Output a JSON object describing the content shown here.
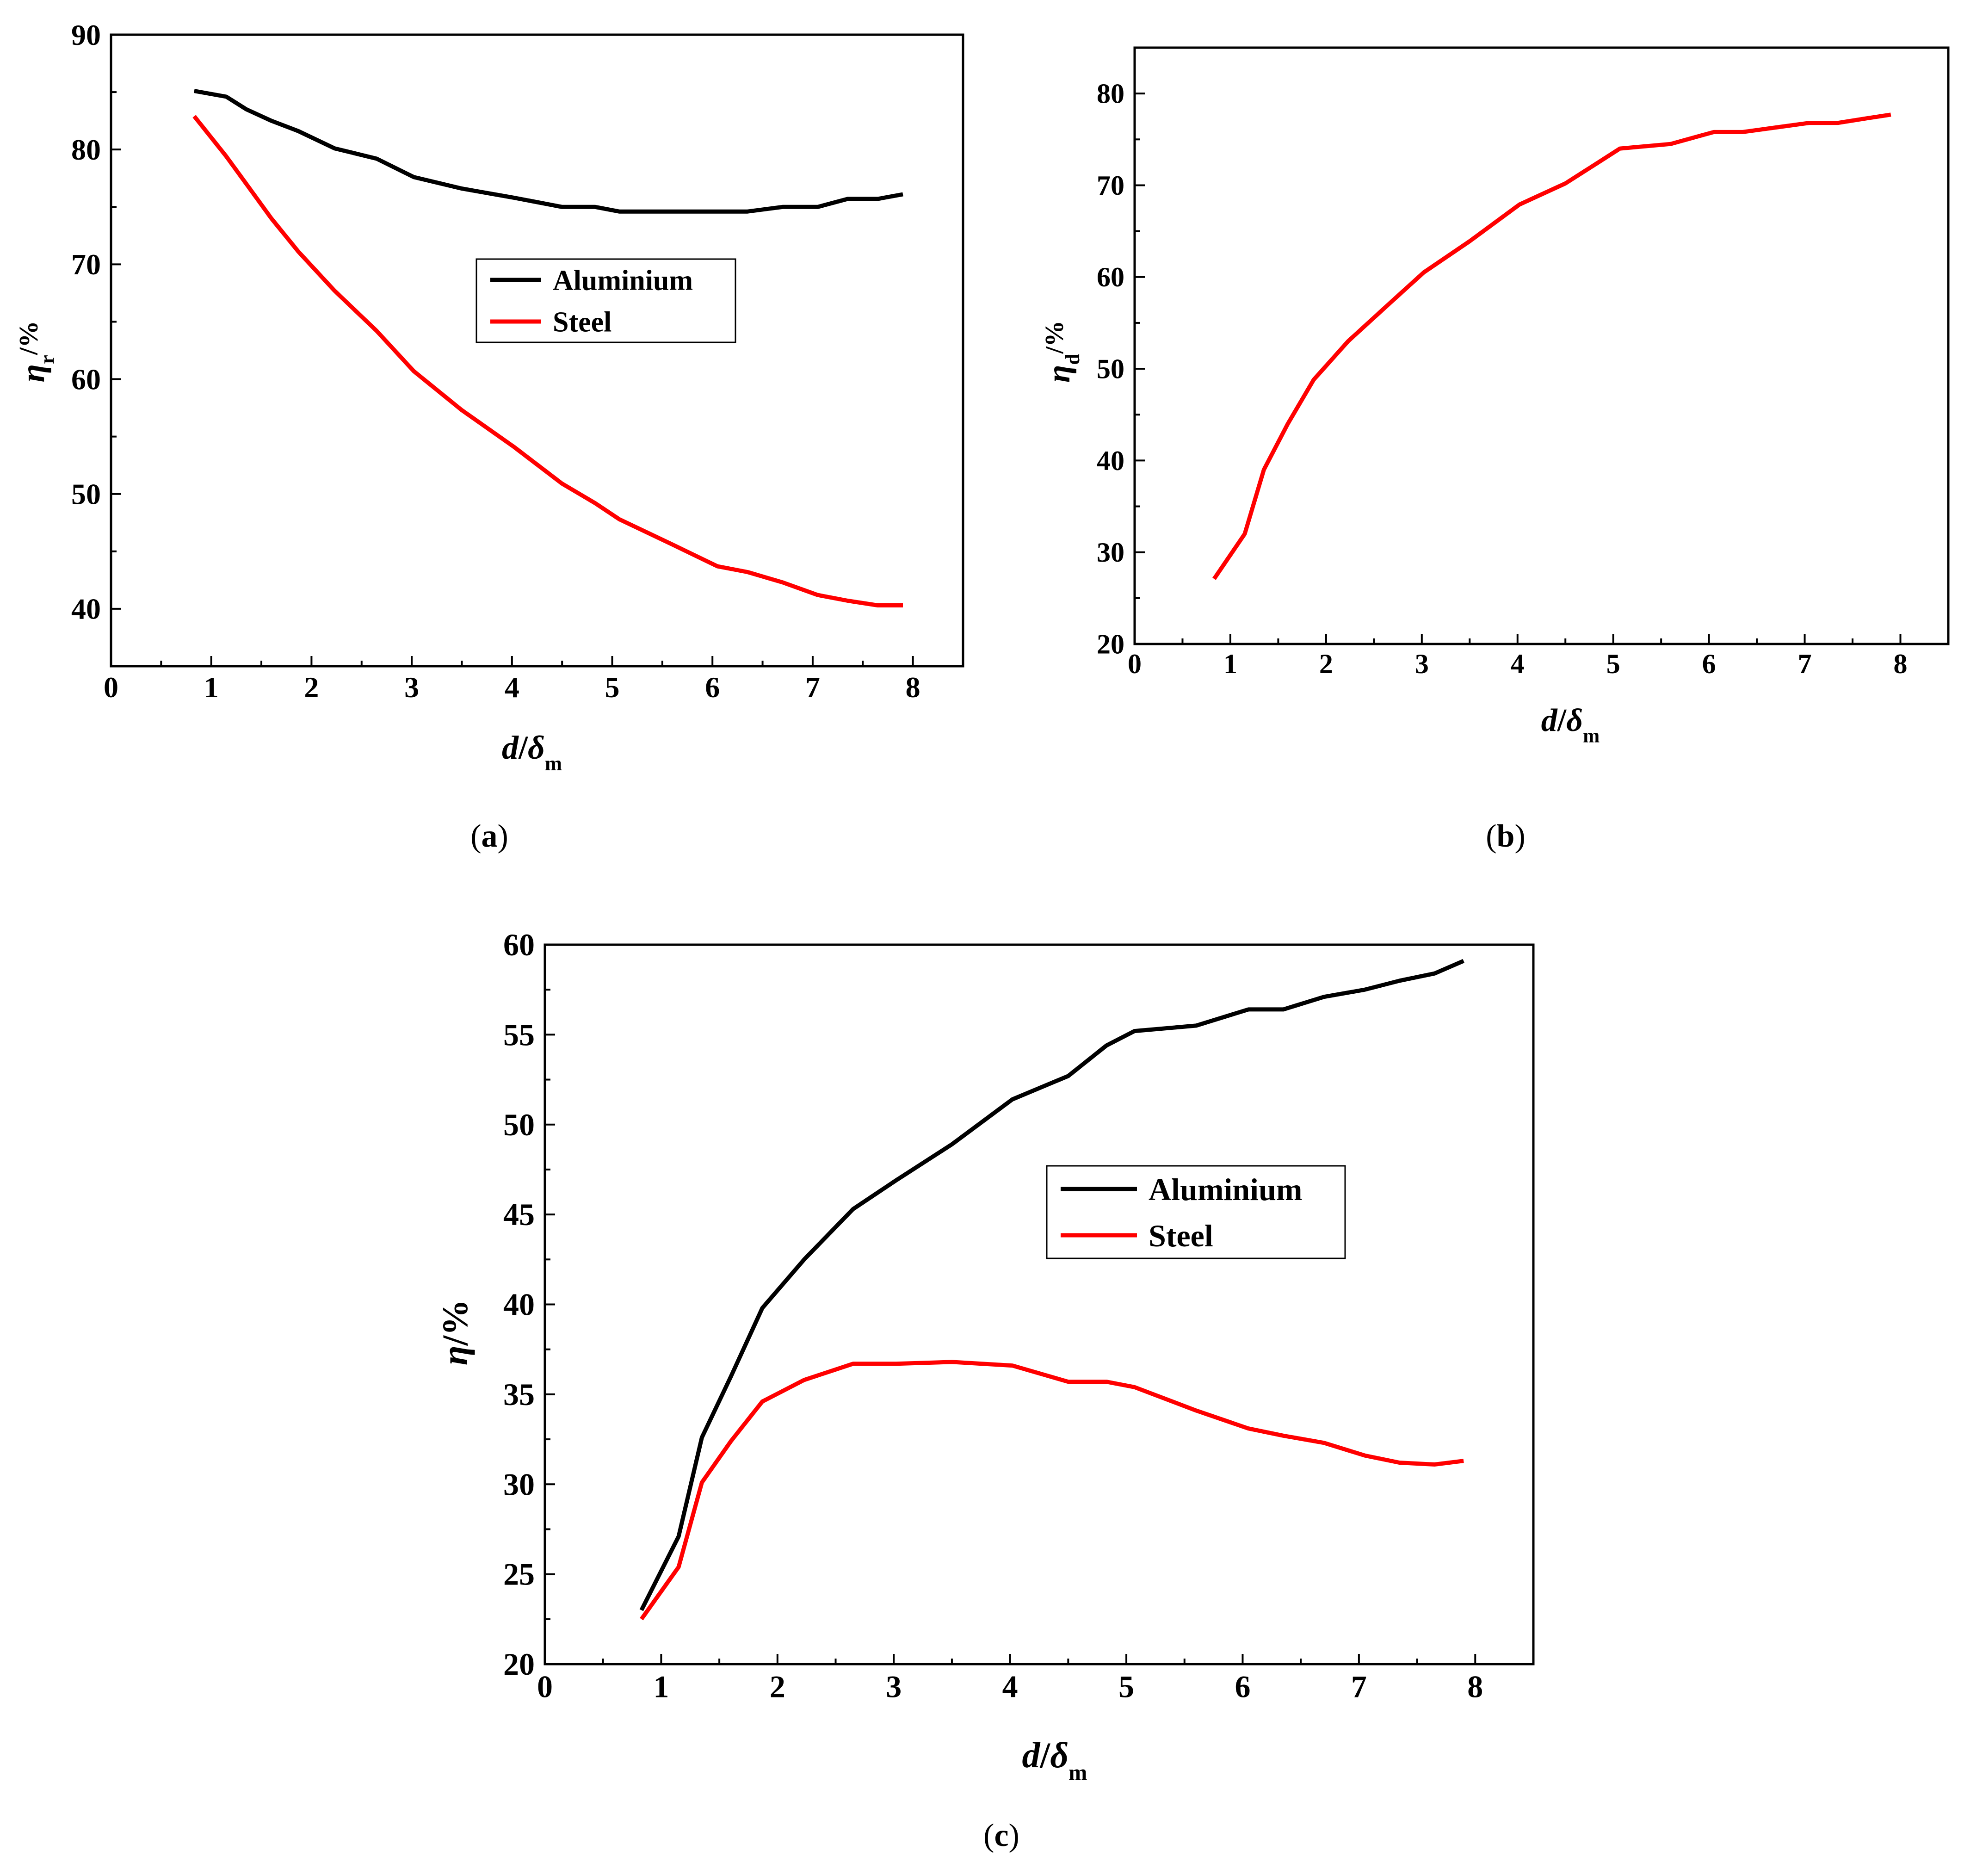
{
  "chart_data": [
    {
      "id": "a",
      "type": "line",
      "caption_letter": "a",
      "title": "",
      "xlabel": {
        "main": "d",
        "sep": "/",
        "sym": "δ",
        "sub": "m"
      },
      "ylabel": {
        "main": "η",
        "sub": "r",
        "suffix": "/%"
      },
      "xlim": [
        0,
        8.5
      ],
      "ylim": [
        35,
        90
      ],
      "xticks": [
        "0",
        "1",
        "2",
        "3",
        "4",
        "5",
        "6",
        "7",
        "8"
      ],
      "yticks": [
        "40",
        "50",
        "60",
        "70",
        "80",
        "90"
      ],
      "legend_position": "center",
      "series": [
        {
          "name": "Aluminium",
          "color": "#000000",
          "x": [
            0.83,
            1.15,
            1.35,
            1.6,
            1.87,
            2.23,
            2.65,
            3.02,
            3.5,
            4.02,
            4.5,
            4.83,
            5.07,
            5.6,
            6.05,
            6.35,
            6.7,
            7.05,
            7.35,
            7.65,
            7.9
          ],
          "y": [
            85.1,
            84.6,
            83.5,
            82.5,
            81.6,
            80.1,
            79.2,
            77.6,
            76.6,
            75.8,
            75.0,
            75.0,
            74.6,
            74.6,
            74.6,
            74.6,
            75.0,
            75.0,
            75.7,
            75.7,
            76.1
          ]
        },
        {
          "name": "Steel",
          "color": "#ff0000",
          "x": [
            0.83,
            1.15,
            1.35,
            1.6,
            1.87,
            2.23,
            2.65,
            3.02,
            3.5,
            4.02,
            4.5,
            4.83,
            5.07,
            5.6,
            6.05,
            6.35,
            6.7,
            7.05,
            7.35,
            7.65,
            7.9
          ],
          "y": [
            82.9,
            79.4,
            77.0,
            74.0,
            71.1,
            67.7,
            64.2,
            60.7,
            57.3,
            54.1,
            50.9,
            49.2,
            47.8,
            45.6,
            43.7,
            43.2,
            42.3,
            41.2,
            40.7,
            40.3,
            40.3
          ]
        }
      ]
    },
    {
      "id": "b",
      "type": "line",
      "caption_letter": "b",
      "title": "",
      "xlabel": {
        "main": "d",
        "sep": "/",
        "sym": "δ",
        "sub": "m"
      },
      "ylabel": {
        "main": "η",
        "sub": "d",
        "suffix": "/%"
      },
      "xlim": [
        0,
        8.5
      ],
      "ylim": [
        20,
        85
      ],
      "xticks": [
        "0",
        "1",
        "2",
        "3",
        "4",
        "5",
        "6",
        "7",
        "8"
      ],
      "yticks": [
        "20",
        "30",
        "40",
        "50",
        "60",
        "70",
        "80"
      ],
      "series": [
        {
          "name": "",
          "color": "#ff0000",
          "x": [
            0.83,
            1.15,
            1.35,
            1.6,
            1.87,
            2.23,
            2.65,
            3.02,
            3.5,
            4.02,
            4.5,
            4.83,
            5.07,
            5.6,
            6.05,
            6.35,
            6.7,
            7.05,
            7.35,
            7.65,
            7.9
          ],
          "y": [
            27.1,
            32.0,
            39.0,
            44.0,
            48.8,
            53.0,
            57.0,
            60.5,
            63.9,
            67.9,
            70.2,
            72.4,
            74.0,
            74.5,
            75.8,
            75.8,
            76.3,
            76.8,
            76.8,
            77.3,
            77.7
          ]
        }
      ]
    },
    {
      "id": "c",
      "type": "line",
      "caption_letter": "c",
      "title": "",
      "xlabel": {
        "main": "d",
        "sep": "/",
        "sym": "δ",
        "sub": "m"
      },
      "ylabel": {
        "main": "η",
        "sub": "",
        "suffix": "/%"
      },
      "xlim": [
        0,
        8.5
      ],
      "ylim": [
        20,
        60
      ],
      "xticks": [
        "0",
        "1",
        "2",
        "3",
        "4",
        "5",
        "6",
        "7",
        "8"
      ],
      "yticks": [
        "20",
        "25",
        "30",
        "35",
        "40",
        "45",
        "50",
        "55",
        "60"
      ],
      "legend_position": "center",
      "series": [
        {
          "name": "Aluminium",
          "color": "#000000",
          "x": [
            0.83,
            1.15,
            1.35,
            1.6,
            1.87,
            2.23,
            2.65,
            3.02,
            3.5,
            4.02,
            4.5,
            4.83,
            5.07,
            5.6,
            6.05,
            6.35,
            6.7,
            7.05,
            7.35,
            7.65,
            7.9
          ],
          "y": [
            23.0,
            27.1,
            32.6,
            36.0,
            39.8,
            42.5,
            45.3,
            46.9,
            48.9,
            51.4,
            52.7,
            54.4,
            55.2,
            55.5,
            56.4,
            56.4,
            57.1,
            57.5,
            58.0,
            58.4,
            59.1
          ]
        },
        {
          "name": "Steel",
          "color": "#ff0000",
          "x": [
            0.83,
            1.15,
            1.35,
            1.6,
            1.87,
            2.23,
            2.65,
            3.02,
            3.5,
            4.02,
            4.5,
            4.83,
            5.07,
            5.6,
            6.05,
            6.35,
            6.7,
            7.05,
            7.35,
            7.65,
            7.9
          ],
          "y": [
            22.5,
            25.4,
            30.1,
            32.4,
            34.6,
            35.8,
            36.7,
            36.7,
            36.8,
            36.6,
            35.7,
            35.7,
            35.4,
            34.1,
            33.1,
            32.7,
            32.3,
            31.6,
            31.2,
            31.1,
            31.3
          ]
        }
      ]
    }
  ]
}
